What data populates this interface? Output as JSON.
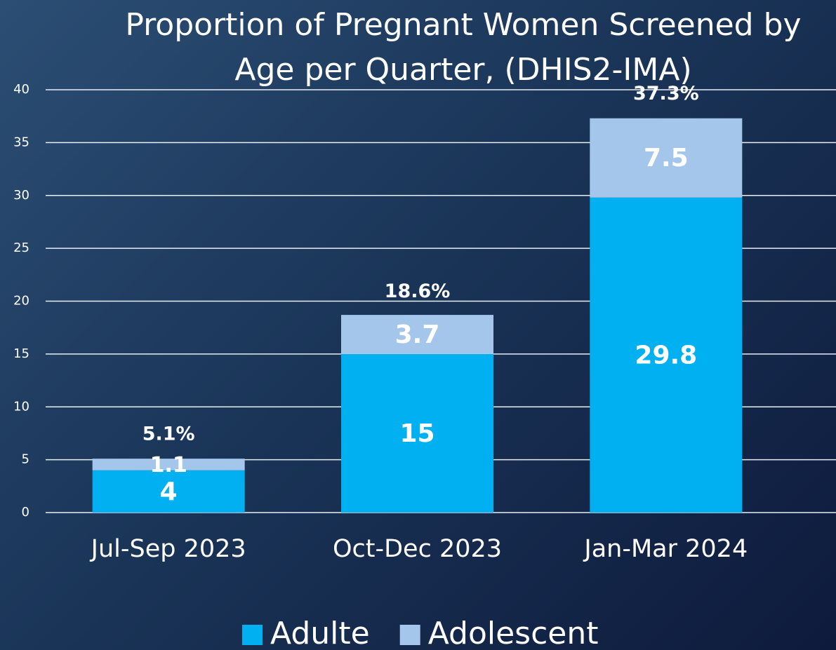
{
  "chart_data": {
    "type": "stacked_bar",
    "title": "Proportion of Pregnant Women Screened by Age per Quarter, (DHIS2-IMA)",
    "categories": [
      "Jul-Sep 2023",
      "Oct-Dec 2023",
      "Jan-Mar 2024"
    ],
    "series": [
      {
        "name": "Adulte",
        "color": "#00b0f0",
        "values": [
          4,
          15,
          29.8
        ]
      },
      {
        "name": "Adolescent",
        "color": "#a4c6ea",
        "values": [
          1.1,
          3.7,
          7.5
        ]
      }
    ],
    "totals": [
      5.1,
      18.6,
      37.3
    ],
    "total_labels": [
      "5.1%",
      "18.6%",
      "37.3%"
    ],
    "ylim": [
      0,
      40
    ],
    "yticks": [
      0,
      5,
      10,
      15,
      20,
      25,
      30,
      35,
      40
    ],
    "grid": true,
    "legend": "bottom"
  }
}
